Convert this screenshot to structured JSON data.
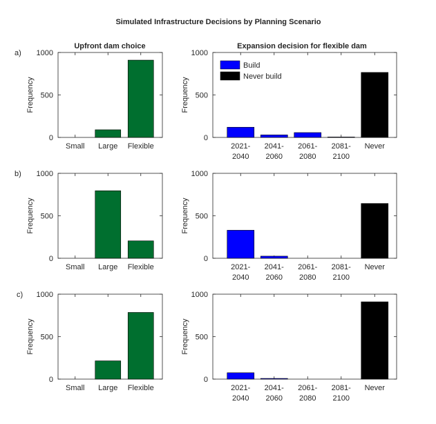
{
  "figure_title": "Simulated Infrastructure Decisions by Planning Scenario",
  "column_titles": [
    "Upfront dam choice",
    "Expansion decision for flexible dam"
  ],
  "panel_labels": [
    "a)",
    "b)",
    "c)"
  ],
  "legend": [
    {
      "name": "Build",
      "color": "#0000ff"
    },
    {
      "name": "Never build",
      "color": "#000000"
    }
  ],
  "colors": {
    "bar_green": "#006f2f",
    "build_blue": "#0000ff",
    "never_black": "#000000"
  },
  "chart_data": [
    {
      "type": "bar",
      "panel": "a)",
      "title": "Upfront dam choice",
      "ylabel": "Frequency",
      "categories": [
        "Small",
        "Large",
        "Flexible"
      ],
      "values": [
        0,
        90,
        910
      ],
      "ylim": [
        0,
        1000
      ],
      "yticks": [
        0,
        500,
        1000
      ],
      "grid": false
    },
    {
      "type": "bar",
      "panel": "a)",
      "title": "Expansion decision for flexible dam",
      "ylabel": "Frequency",
      "categories": [
        "2021-\n2040",
        "2041-\n2060",
        "2061-\n2080",
        "2081-\n2100",
        "Never"
      ],
      "values": [
        120,
        30,
        57,
        5,
        765
      ],
      "ylim": [
        0,
        1000
      ],
      "yticks": [
        0,
        500,
        1000
      ],
      "grid": false,
      "legend": "top-left"
    },
    {
      "type": "bar",
      "panel": "b)",
      "ylabel": "Frequency",
      "categories": [
        "Small",
        "Large",
        "Flexible"
      ],
      "values": [
        0,
        795,
        205
      ],
      "ylim": [
        0,
        1000
      ],
      "yticks": [
        0,
        500,
        1000
      ],
      "grid": false
    },
    {
      "type": "bar",
      "panel": "b)",
      "ylabel": "Frequency",
      "categories": [
        "2021-\n2040",
        "2041-\n2060",
        "2061-\n2080",
        "2081-\n2100",
        "Never"
      ],
      "values": [
        330,
        25,
        0,
        0,
        645
      ],
      "ylim": [
        0,
        1000
      ],
      "yticks": [
        0,
        500,
        1000
      ],
      "grid": false
    },
    {
      "type": "bar",
      "panel": "c)",
      "ylabel": "Frequency",
      "categories": [
        "Small",
        "Large",
        "Flexible"
      ],
      "values": [
        0,
        215,
        785
      ],
      "ylim": [
        0,
        1000
      ],
      "yticks": [
        0,
        500,
        1000
      ],
      "grid": false
    },
    {
      "type": "bar",
      "panel": "c)",
      "ylabel": "Frequency",
      "categories": [
        "2021-\n2040",
        "2041-\n2060",
        "2061-\n2080",
        "2081-\n2100",
        "Never"
      ],
      "values": [
        75,
        8,
        0,
        0,
        910
      ],
      "ylim": [
        0,
        1000
      ],
      "yticks": [
        0,
        500,
        1000
      ],
      "grid": false
    }
  ]
}
